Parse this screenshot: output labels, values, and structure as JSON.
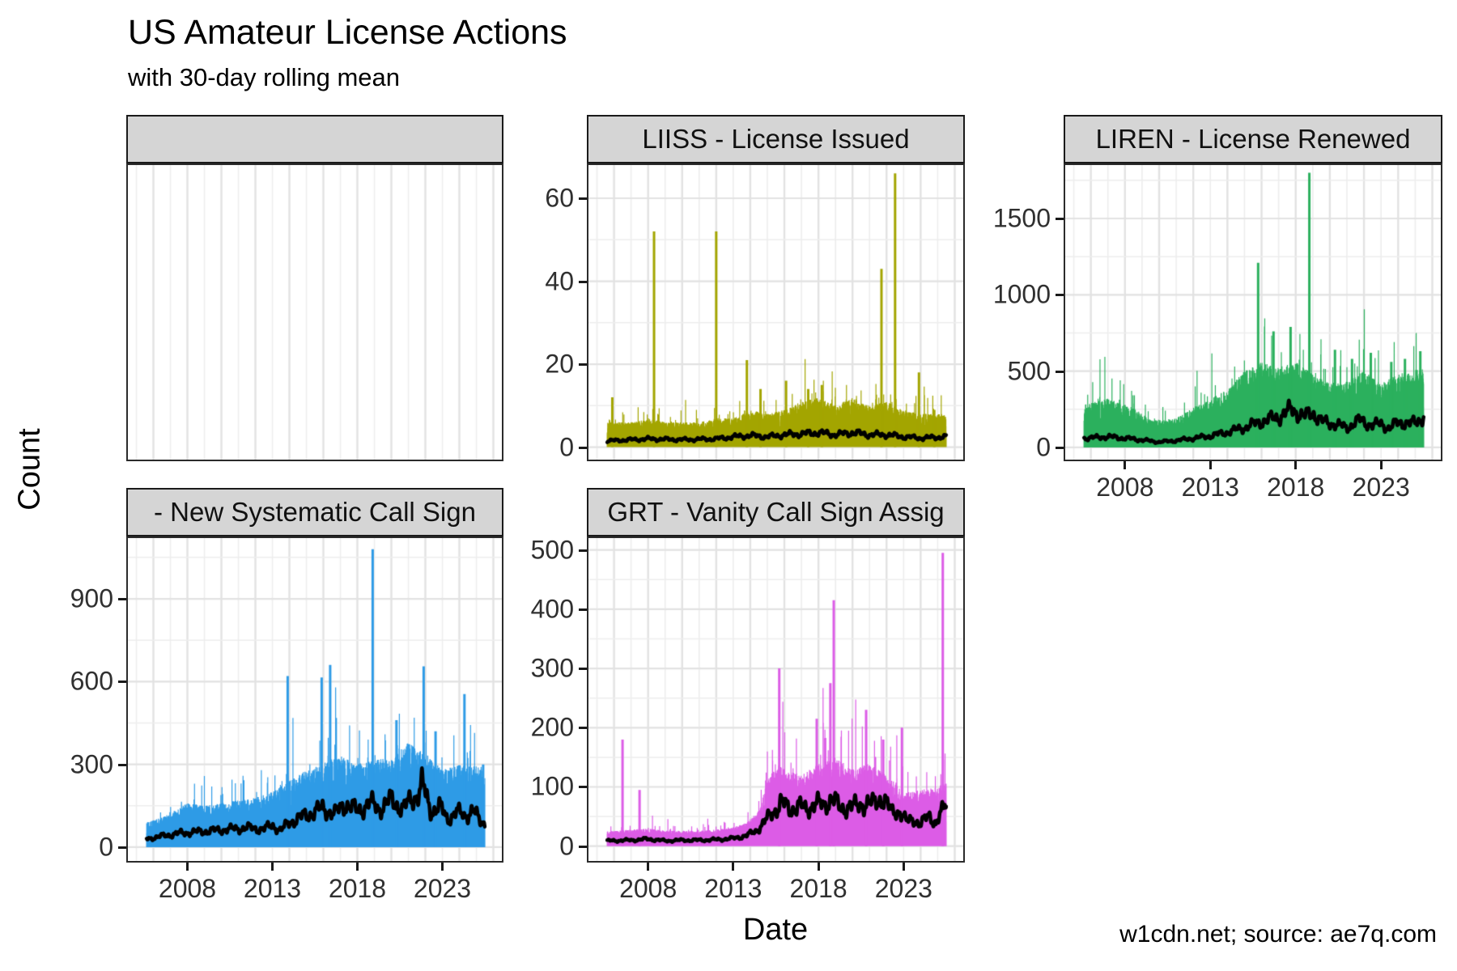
{
  "header": {
    "title": "US Amateur License Actions",
    "subtitle": "with 30-day rolling mean"
  },
  "axes": {
    "y_title": "Count",
    "x_title": "Date"
  },
  "caption": "w1cdn.net; source: ae7q.com",
  "colors": {
    "strip_bg": "#d5d5d5",
    "panel_border": "#2b2b2b",
    "grid_major": "#e2e2e2",
    "grid_minor": "#ededed",
    "mean_line": "#000000",
    "tick": "#1a1a1a"
  },
  "chart_data": {
    "type": "area",
    "description": "Daily counts of US amateur radio license actions with 30-day rolling mean overlay, faceted by action type",
    "x_domain": [
      2004.5,
      2026.5
    ],
    "x_ticks": [
      2008,
      2013,
      2018,
      2023
    ],
    "grid": "major and minor, light gray",
    "legend_position": "none",
    "panels": [
      {
        "key": "empty-facet",
        "title": "",
        "empty": true,
        "col": 0,
        "row": 0,
        "show_x": false,
        "yticks": []
      },
      {
        "key": "liiss",
        "title": "LIISS - License Issued",
        "color": "#a3a500",
        "col": 1,
        "row": 0,
        "show_x": false,
        "ylim": [
          -3,
          68
        ],
        "yticks": [
          0,
          20,
          40,
          60
        ],
        "data_start": 2005.6,
        "data_end": 2025.5,
        "seed": 11,
        "envelope": [
          [
            2005.6,
            6
          ],
          [
            2007,
            6
          ],
          [
            2008,
            7
          ],
          [
            2009,
            6
          ],
          [
            2010,
            6
          ],
          [
            2011,
            6
          ],
          [
            2012,
            7
          ],
          [
            2013,
            7
          ],
          [
            2014,
            9
          ],
          [
            2015,
            8
          ],
          [
            2016,
            9
          ],
          [
            2017,
            11
          ],
          [
            2018,
            12
          ],
          [
            2019,
            10
          ],
          [
            2020,
            12
          ],
          [
            2021,
            10
          ],
          [
            2022,
            11
          ],
          [
            2023,
            9
          ],
          [
            2024,
            8
          ],
          [
            2025.5,
            8
          ]
        ],
        "rolling_mean": [
          [
            2005.6,
            1.5
          ],
          [
            2008,
            2
          ],
          [
            2010,
            1.8
          ],
          [
            2012,
            2
          ],
          [
            2013,
            2.5
          ],
          [
            2014,
            2.8
          ],
          [
            2015,
            2.5
          ],
          [
            2016,
            3
          ],
          [
            2017,
            3.2
          ],
          [
            2018,
            3.5
          ],
          [
            2019,
            3
          ],
          [
            2020,
            3.5
          ],
          [
            2021,
            3
          ],
          [
            2022,
            3
          ],
          [
            2023,
            2.5
          ],
          [
            2024,
            2.2
          ],
          [
            2025.5,
            2.5
          ]
        ],
        "spikes": [
          [
            2005.9,
            12
          ],
          [
            2008.35,
            52
          ],
          [
            2012.0,
            52
          ],
          [
            2013.8,
            21
          ],
          [
            2014.6,
            14
          ],
          [
            2016.1,
            16
          ],
          [
            2017.4,
            14
          ],
          [
            2018.2,
            15
          ],
          [
            2021.7,
            43
          ],
          [
            2022.5,
            66
          ],
          [
            2023.9,
            18
          ],
          [
            2024.8,
            9
          ]
        ]
      },
      {
        "key": "liren",
        "title": "LIREN - License Renewed",
        "color": "#2bb05d",
        "col": 2,
        "row": 0,
        "show_x": true,
        "ylim": [
          -80,
          1850
        ],
        "yticks": [
          0,
          500,
          1000,
          1500
        ],
        "data_start": 2005.6,
        "data_end": 2025.5,
        "seed": 22,
        "envelope": [
          [
            2005.6,
            280
          ],
          [
            2007,
            320
          ],
          [
            2008.5,
            260
          ],
          [
            2009.5,
            180
          ],
          [
            2011,
            190
          ],
          [
            2012,
            260
          ],
          [
            2013,
            320
          ],
          [
            2014,
            380
          ],
          [
            2015,
            500
          ],
          [
            2016,
            560
          ],
          [
            2017,
            520
          ],
          [
            2018,
            560
          ],
          [
            2019,
            480
          ],
          [
            2020,
            420
          ],
          [
            2021,
            440
          ],
          [
            2022,
            500
          ],
          [
            2023,
            420
          ],
          [
            2024,
            480
          ],
          [
            2025.5,
            520
          ]
        ],
        "rolling_mean": [
          [
            2005.6,
            60
          ],
          [
            2007,
            70
          ],
          [
            2008.5,
            55
          ],
          [
            2010,
            35
          ],
          [
            2011,
            45
          ],
          [
            2012,
            60
          ],
          [
            2013,
            75
          ],
          [
            2014,
            100
          ],
          [
            2015,
            130
          ],
          [
            2016,
            170
          ],
          [
            2017,
            200
          ],
          [
            2017.8,
            250
          ],
          [
            2018.5,
            200
          ],
          [
            2019,
            230
          ],
          [
            2019.5,
            170
          ],
          [
            2020,
            160
          ],
          [
            2021,
            130
          ],
          [
            2021.8,
            180
          ],
          [
            2022.5,
            140
          ],
          [
            2023,
            160
          ],
          [
            2023.5,
            120
          ],
          [
            2024,
            170
          ],
          [
            2024.7,
            150
          ],
          [
            2025.5,
            200
          ]
        ],
        "spikes": [
          [
            2015.8,
            1210
          ],
          [
            2016.7,
            760
          ],
          [
            2017.7,
            790
          ],
          [
            2018.8,
            1800
          ],
          [
            2020.3,
            640
          ],
          [
            2021.3,
            580
          ],
          [
            2022.4,
            620
          ],
          [
            2023.6,
            560
          ],
          [
            2024.4,
            580
          ],
          [
            2025.3,
            630
          ]
        ]
      },
      {
        "key": "new-systematic-call-sign",
        "title": "- New Systematic Call Sign",
        "color": "#2e9be6",
        "col": 0,
        "row": 1,
        "show_x": true,
        "ylim": [
          -50,
          1120
        ],
        "yticks": [
          0,
          300,
          600,
          900
        ],
        "data_start": 2005.6,
        "data_end": 2025.5,
        "seed": 33,
        "envelope": [
          [
            2005.6,
            90
          ],
          [
            2007,
            120
          ],
          [
            2008,
            160
          ],
          [
            2009,
            150
          ],
          [
            2010,
            160
          ],
          [
            2011,
            170
          ],
          [
            2012,
            180
          ],
          [
            2013,
            200
          ],
          [
            2014,
            240
          ],
          [
            2015,
            280
          ],
          [
            2016,
            300
          ],
          [
            2017,
            330
          ],
          [
            2018,
            300
          ],
          [
            2019,
            320
          ],
          [
            2020,
            320
          ],
          [
            2021,
            380
          ],
          [
            2022,
            340
          ],
          [
            2023,
            280
          ],
          [
            2024,
            300
          ],
          [
            2025.5,
            290
          ]
        ],
        "rolling_mean": [
          [
            2005.6,
            30
          ],
          [
            2006.5,
            40
          ],
          [
            2007.5,
            50
          ],
          [
            2008.5,
            55
          ],
          [
            2009.5,
            60
          ],
          [
            2010.5,
            65
          ],
          [
            2011.5,
            70
          ],
          [
            2012.5,
            65
          ],
          [
            2013,
            80
          ],
          [
            2013.5,
            60
          ],
          [
            2014,
            90
          ],
          [
            2014.8,
            110
          ],
          [
            2015.5,
            130
          ],
          [
            2016,
            140
          ],
          [
            2016.7,
            120
          ],
          [
            2017.3,
            160
          ],
          [
            2018,
            130
          ],
          [
            2018.7,
            160
          ],
          [
            2019.3,
            140
          ],
          [
            2020,
            170
          ],
          [
            2020.7,
            140
          ],
          [
            2021.5,
            190
          ],
          [
            2021.8,
            230
          ],
          [
            2022.3,
            130
          ],
          [
            2022.8,
            150
          ],
          [
            2023.3,
            100
          ],
          [
            2023.8,
            130
          ],
          [
            2024.3,
            110
          ],
          [
            2024.8,
            140
          ],
          [
            2025.2,
            90
          ],
          [
            2025.5,
            85
          ]
        ],
        "spikes": [
          [
            2013.9,
            620
          ],
          [
            2015.9,
            615
          ],
          [
            2016.4,
            660
          ],
          [
            2018.9,
            1080
          ],
          [
            2020.3,
            460
          ],
          [
            2021.9,
            655
          ],
          [
            2022.6,
            420
          ],
          [
            2024.3,
            555
          ],
          [
            2025.4,
            300
          ]
        ]
      },
      {
        "key": "grt-vanity",
        "title": "GRT - Vanity Call Sign Assig",
        "color": "#dc5ce6",
        "col": 1,
        "row": 1,
        "show_x": true,
        "ylim": [
          -25,
          520
        ],
        "yticks": [
          0,
          100,
          200,
          300,
          400,
          500
        ],
        "data_start": 2005.6,
        "data_end": 2025.5,
        "seed": 44,
        "envelope": [
          [
            2005.6,
            25
          ],
          [
            2007,
            28
          ],
          [
            2008,
            30
          ],
          [
            2009,
            26
          ],
          [
            2010,
            26
          ],
          [
            2011,
            26
          ],
          [
            2012,
            28
          ],
          [
            2013,
            32
          ],
          [
            2013.8,
            40
          ],
          [
            2014.5,
            60
          ],
          [
            2015,
            110
          ],
          [
            2015.5,
            140
          ],
          [
            2016,
            130
          ],
          [
            2017,
            120
          ],
          [
            2018,
            140
          ],
          [
            2019,
            150
          ],
          [
            2020,
            130
          ],
          [
            2021,
            140
          ],
          [
            2022,
            120
          ],
          [
            2022.5,
            110
          ],
          [
            2023,
            90
          ],
          [
            2024,
            95
          ],
          [
            2025,
            100
          ],
          [
            2025.5,
            110
          ]
        ],
        "rolling_mean": [
          [
            2005.6,
            9
          ],
          [
            2007,
            10
          ],
          [
            2008,
            12
          ],
          [
            2009,
            9
          ],
          [
            2010,
            10
          ],
          [
            2011,
            10
          ],
          [
            2012,
            11
          ],
          [
            2013,
            13
          ],
          [
            2013.8,
            18
          ],
          [
            2014.3,
            25
          ],
          [
            2014.8,
            40
          ],
          [
            2015.3,
            55
          ],
          [
            2015.8,
            75
          ],
          [
            2016.3,
            60
          ],
          [
            2016.8,
            70
          ],
          [
            2017.3,
            60
          ],
          [
            2017.8,
            75
          ],
          [
            2018.3,
            65
          ],
          [
            2018.8,
            85
          ],
          [
            2019.3,
            60
          ],
          [
            2019.8,
            70
          ],
          [
            2020.3,
            65
          ],
          [
            2020.8,
            75
          ],
          [
            2021.3,
            70
          ],
          [
            2021.8,
            85
          ],
          [
            2022.3,
            55
          ],
          [
            2022.8,
            60
          ],
          [
            2023.2,
            40
          ],
          [
            2023.6,
            45
          ],
          [
            2024,
            38
          ],
          [
            2024.5,
            50
          ],
          [
            2024.9,
            40
          ],
          [
            2025.2,
            55
          ],
          [
            2025.5,
            70
          ]
        ],
        "spikes": [
          [
            2006.5,
            180
          ],
          [
            2007.5,
            95
          ],
          [
            2015.7,
            300
          ],
          [
            2017.9,
            215
          ],
          [
            2018.7,
            275
          ],
          [
            2018.9,
            415
          ],
          [
            2020.8,
            230
          ],
          [
            2021.8,
            180
          ],
          [
            2022.9,
            200
          ],
          [
            2025.3,
            495
          ]
        ]
      }
    ]
  }
}
